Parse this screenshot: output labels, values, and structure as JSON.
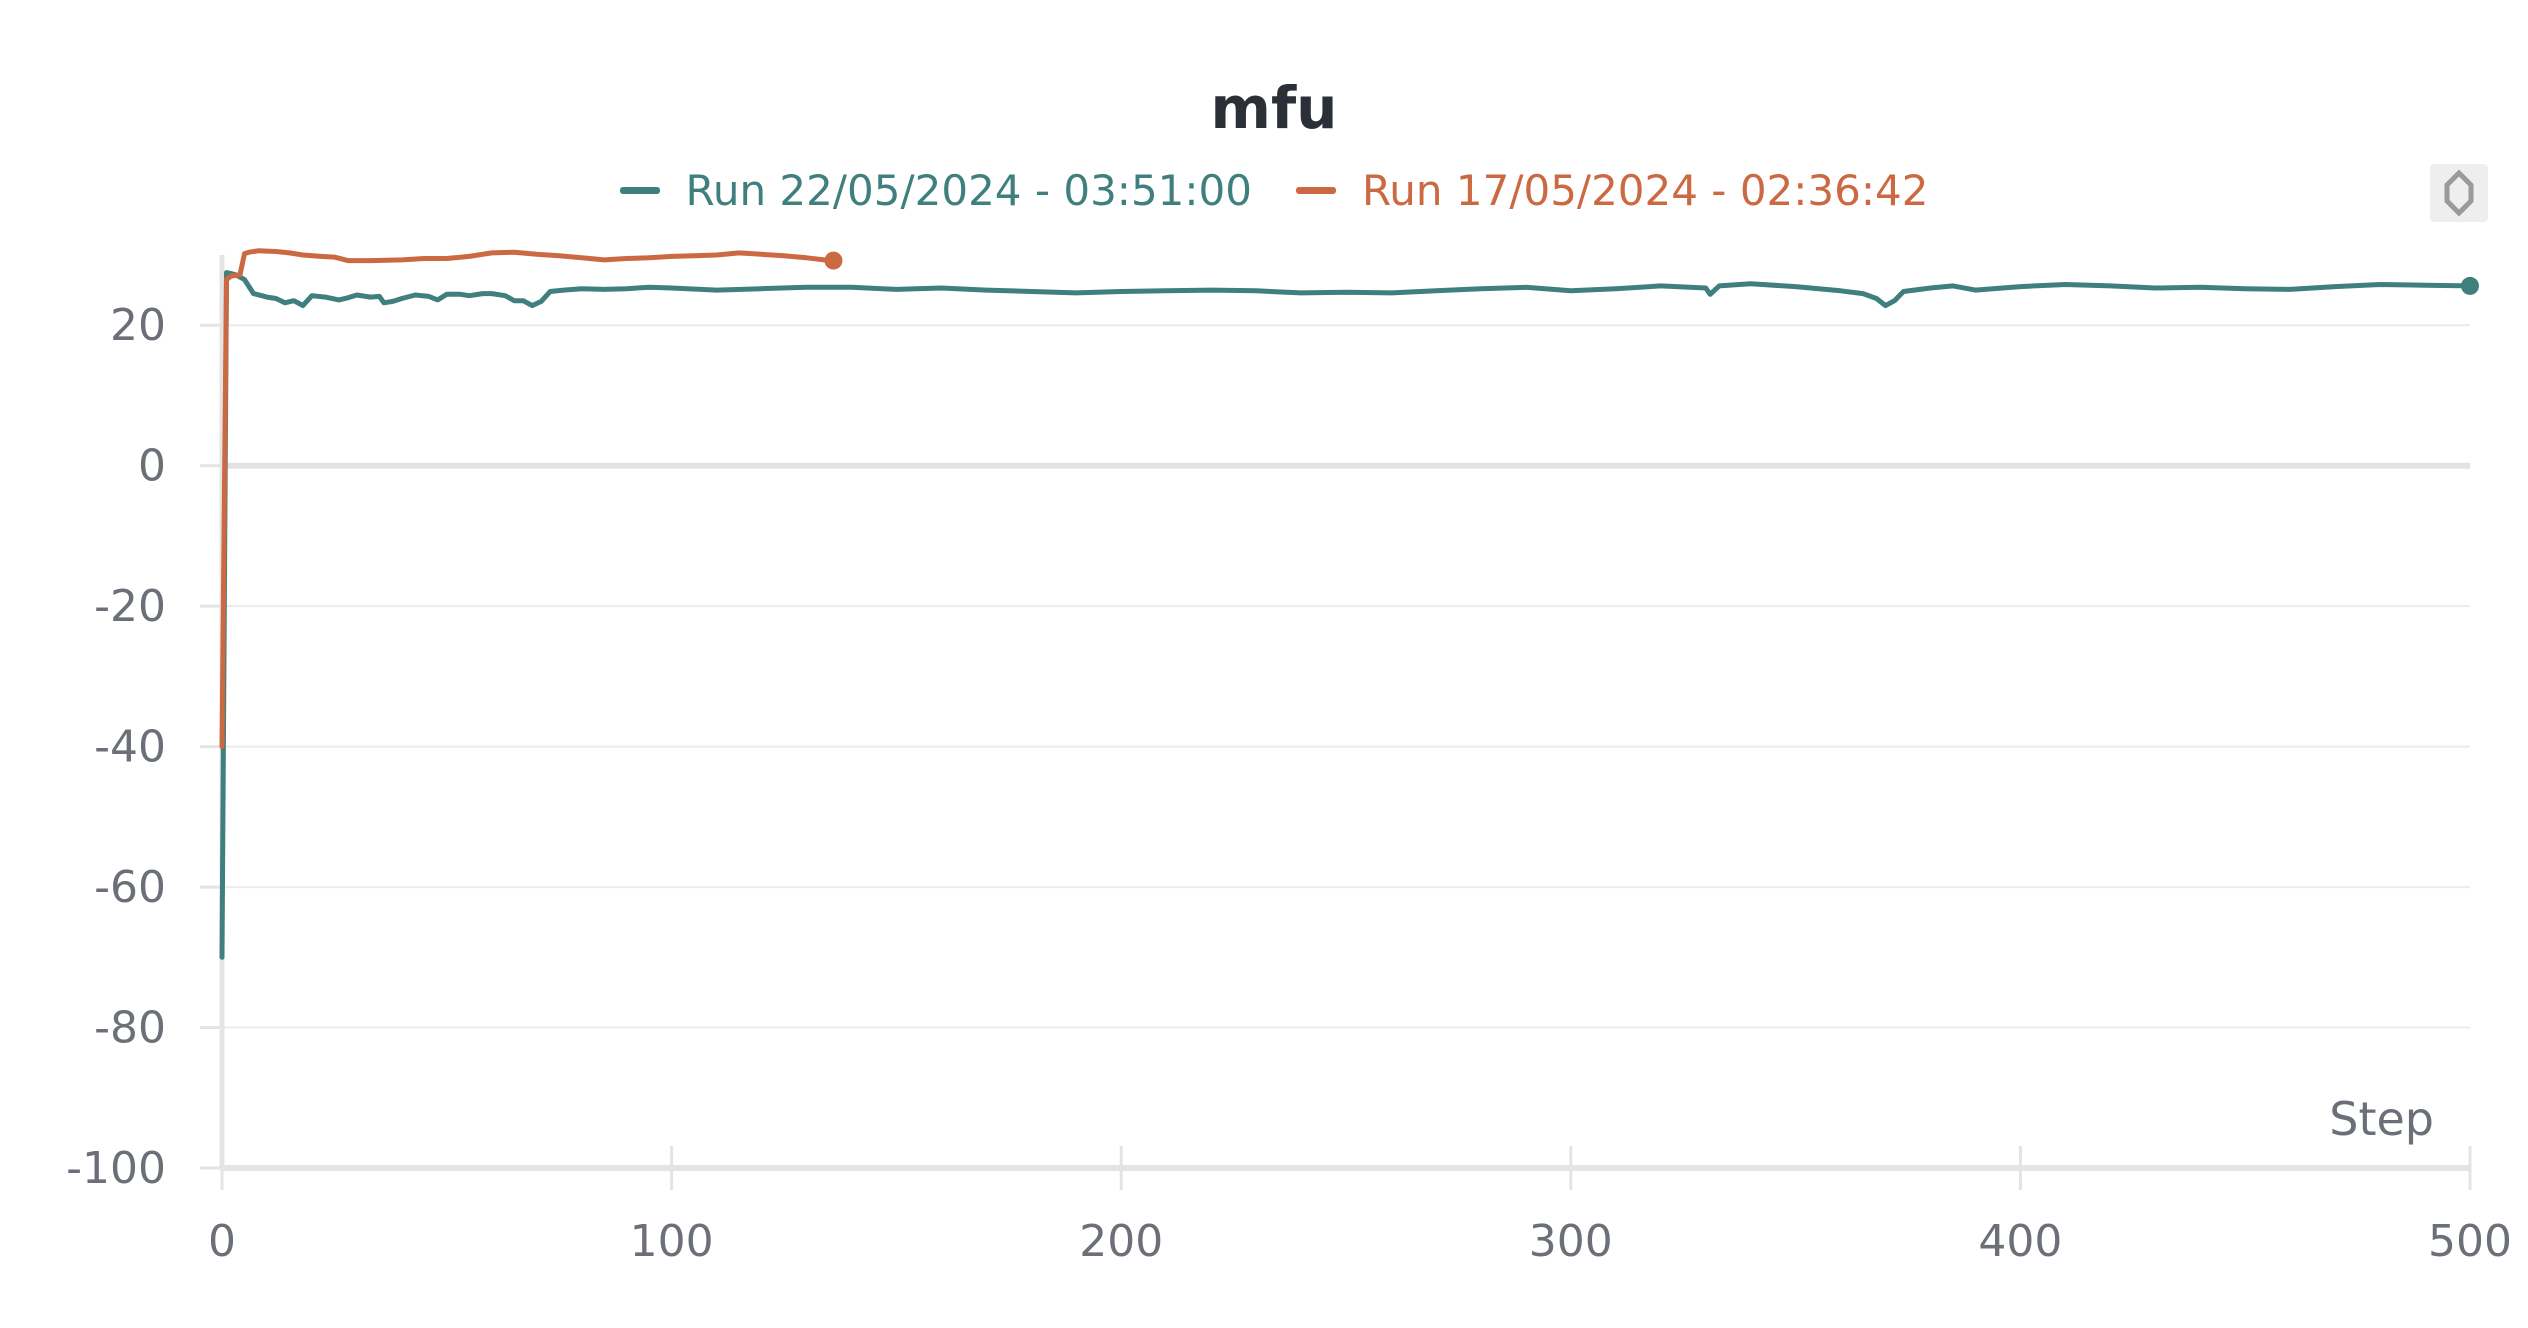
{
  "chart_data": {
    "type": "line",
    "title": "mfu",
    "xlabel": "Step",
    "ylabel": "",
    "xlim": [
      0,
      500
    ],
    "ylim": [
      -100,
      30
    ],
    "x_ticks": [
      "0",
      "100",
      "200",
      "300",
      "400",
      "500"
    ],
    "y_ticks": [
      "20",
      "0",
      "-20",
      "-40",
      "-60",
      "-80",
      "-100"
    ],
    "grid": true,
    "legend_position": "top",
    "series": [
      {
        "name": "Run 22/05/2024 - 03:51:00",
        "color": "#3f7f7e",
        "points": [
          [
            0,
            -70
          ],
          [
            1,
            27.5
          ],
          [
            3,
            27.2
          ],
          [
            5,
            26.5
          ],
          [
            7,
            24.5
          ],
          [
            10,
            24
          ],
          [
            12,
            23.8
          ],
          [
            14,
            23.2
          ],
          [
            16,
            23.5
          ],
          [
            18,
            22.8
          ],
          [
            20,
            24.2
          ],
          [
            23,
            24
          ],
          [
            26,
            23.6
          ],
          [
            28,
            23.9
          ],
          [
            30,
            24.3
          ],
          [
            33,
            24
          ],
          [
            35,
            24.1
          ],
          [
            36,
            23.2
          ],
          [
            38,
            23.4
          ],
          [
            40,
            23.8
          ],
          [
            43,
            24.3
          ],
          [
            46,
            24.1
          ],
          [
            48,
            23.6
          ],
          [
            50,
            24.4
          ],
          [
            53,
            24.4
          ],
          [
            55,
            24.2
          ],
          [
            58,
            24.5
          ],
          [
            60,
            24.5
          ],
          [
            63,
            24.2
          ],
          [
            65,
            23.5
          ],
          [
            67,
            23.5
          ],
          [
            69,
            22.8
          ],
          [
            71,
            23.4
          ],
          [
            73,
            24.8
          ],
          [
            76,
            25
          ],
          [
            80,
            25.2
          ],
          [
            85,
            25.1
          ],
          [
            90,
            25.2
          ],
          [
            95,
            25.4
          ],
          [
            100,
            25.3
          ],
          [
            110,
            25
          ],
          [
            120,
            25.2
          ],
          [
            130,
            25.4
          ],
          [
            140,
            25.4
          ],
          [
            150,
            25.1
          ],
          [
            160,
            25.3
          ],
          [
            170,
            25
          ],
          [
            180,
            24.8
          ],
          [
            190,
            24.6
          ],
          [
            200,
            24.8
          ],
          [
            210,
            24.9
          ],
          [
            220,
            25
          ],
          [
            230,
            24.9
          ],
          [
            240,
            24.6
          ],
          [
            250,
            24.7
          ],
          [
            260,
            24.6
          ],
          [
            270,
            24.9
          ],
          [
            280,
            25.2
          ],
          [
            290,
            25.4
          ],
          [
            300,
            24.9
          ],
          [
            310,
            25.2
          ],
          [
            320,
            25.6
          ],
          [
            330,
            25.3
          ],
          [
            331,
            24.4
          ],
          [
            333,
            25.6
          ],
          [
            340,
            25.9
          ],
          [
            350,
            25.5
          ],
          [
            360,
            24.9
          ],
          [
            365,
            24.5
          ],
          [
            368,
            23.8
          ],
          [
            370,
            22.8
          ],
          [
            372,
            23.5
          ],
          [
            374,
            24.8
          ],
          [
            380,
            25.3
          ],
          [
            385,
            25.6
          ],
          [
            390,
            25
          ],
          [
            400,
            25.5
          ],
          [
            410,
            25.8
          ],
          [
            420,
            25.6
          ],
          [
            430,
            25.3
          ],
          [
            440,
            25.4
          ],
          [
            450,
            25.2
          ],
          [
            460,
            25.1
          ],
          [
            470,
            25.5
          ],
          [
            480,
            25.8
          ],
          [
            490,
            25.7
          ],
          [
            500,
            25.6
          ]
        ]
      },
      {
        "name": "Run 17/05/2024 - 02:36:42",
        "color": "#cb6942",
        "points": [
          [
            0,
            -40
          ],
          [
            1,
            26.5
          ],
          [
            2,
            27
          ],
          [
            4,
            27.2
          ],
          [
            5,
            30.2
          ],
          [
            6,
            30.4
          ],
          [
            8,
            30.6
          ],
          [
            12,
            30.5
          ],
          [
            15,
            30.3
          ],
          [
            18,
            30
          ],
          [
            22,
            29.8
          ],
          [
            25,
            29.7
          ],
          [
            28,
            29.2
          ],
          [
            33,
            29.2
          ],
          [
            40,
            29.3
          ],
          [
            45,
            29.5
          ],
          [
            50,
            29.5
          ],
          [
            55,
            29.8
          ],
          [
            60,
            30.3
          ],
          [
            65,
            30.4
          ],
          [
            70,
            30.1
          ],
          [
            75,
            29.9
          ],
          [
            80,
            29.6
          ],
          [
            85,
            29.3
          ],
          [
            90,
            29.5
          ],
          [
            95,
            29.6
          ],
          [
            100,
            29.8
          ],
          [
            105,
            29.9
          ],
          [
            110,
            30
          ],
          [
            115,
            30.3
          ],
          [
            120,
            30.1
          ],
          [
            125,
            29.9
          ],
          [
            130,
            29.6
          ],
          [
            134,
            29.3
          ],
          [
            136,
            29.2
          ]
        ]
      }
    ]
  }
}
